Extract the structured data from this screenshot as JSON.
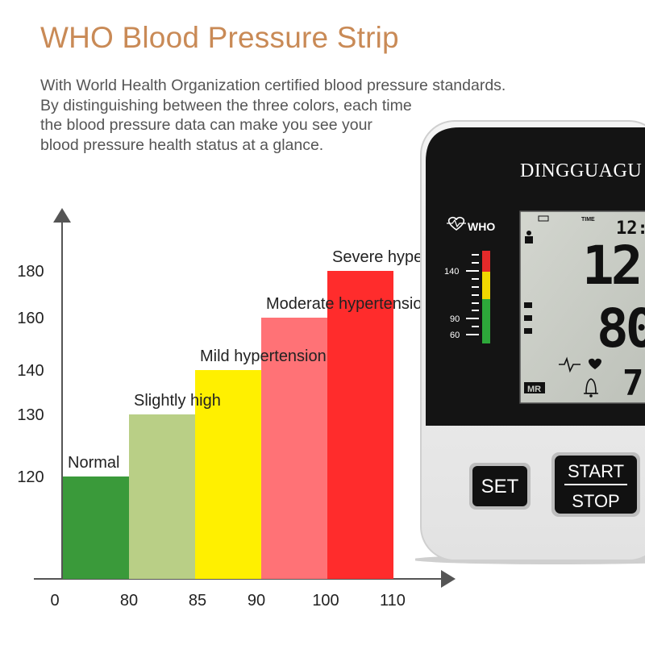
{
  "header": {
    "title": "WHO Blood Pressure Strip",
    "description_lines": [
      "With World Health Organization certified blood pressure standards.",
      "By distinguishing between the three colors, each time",
      "the blood pressure data can make you see your",
      "blood pressure health status at a glance."
    ]
  },
  "chart_data": {
    "type": "bar",
    "categories": [
      "Normal",
      "Slightly high",
      "Mild hypertension",
      "Moderate hypertension",
      "Severe hypertension"
    ],
    "x_ticks": [
      "0",
      "80",
      "85",
      "90",
      "100",
      "110"
    ],
    "y_ticks": [
      "120",
      "130",
      "140",
      "160",
      "180"
    ],
    "bars": [
      {
        "label": "Normal",
        "x_end": 80,
        "y": 120,
        "color": "#3A9A3A"
      },
      {
        "label": "Slightly high",
        "x_end": 85,
        "y": 130,
        "color": "#B9CF86"
      },
      {
        "label": "Mild hypertension",
        "x_end": 90,
        "y": 140,
        "color": "#FFF000"
      },
      {
        "label": "Moderate hypertension",
        "x_end": 100,
        "y": 160,
        "color": "#FF7276"
      },
      {
        "label": "Severe hypertension",
        "x_end": 110,
        "y": 180,
        "color": "#FF2C2C"
      }
    ],
    "xlabel": "",
    "ylabel": "",
    "grid": false,
    "colors": {
      "axis": "#555555"
    }
  },
  "device": {
    "brand": "DINGGUAGU",
    "who_label": "WHO",
    "time_label": "TIME",
    "time_value": "12:",
    "scale_labels": [
      "140",
      "90",
      "60"
    ],
    "sys_digits": "12",
    "dia_digits": "80",
    "pulse_digits": "7",
    "mr_label": "MR",
    "buttons": {
      "set": "SET",
      "start": "START",
      "stop": "STOP"
    }
  }
}
